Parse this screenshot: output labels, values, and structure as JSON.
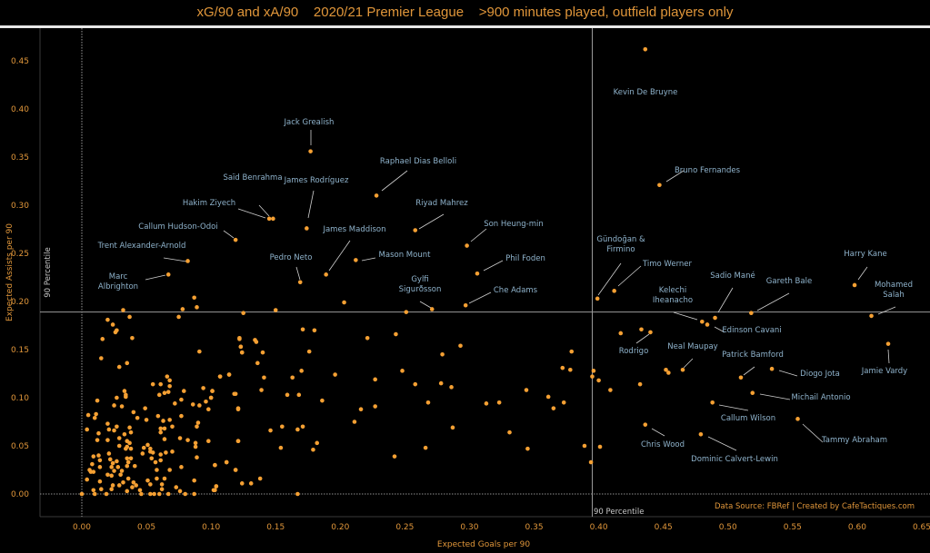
{
  "title": "xG/90 and xA/90    2020/21 Premier League    >900 minutes played, outfield players only",
  "colors": {
    "point": "#f5a033",
    "label": "#8fb3cc",
    "axis_text": "#e0963a",
    "percentile_line": "#9a9a9a"
  },
  "chart_data": {
    "type": "scatter",
    "title": "xG/90 and xA/90    2020/21 Premier League    >900 minutes played, outfield players only",
    "xlabel": "Expected Goals per 90",
    "ylabel": "Expected Assists per 90",
    "xlim": [
      -0.032,
      0.657
    ],
    "ylim": [
      -0.022,
      0.475
    ],
    "xticks": [
      "0.00",
      "0.05",
      "0.10",
      "0.15",
      "0.20",
      "0.25",
      "0.30",
      "0.35",
      "0.40",
      "0.45",
      "0.50",
      "0.55",
      "0.60",
      "0.65"
    ],
    "xtick_values": [
      0,
      0.05,
      0.1,
      0.15,
      0.2,
      0.25,
      0.3,
      0.35,
      0.4,
      0.45,
      0.5,
      0.55,
      0.6,
      0.65
    ],
    "yticks": [
      "0.00",
      "0.05",
      "0.10",
      "0.15",
      "0.20",
      "0.25",
      "0.30",
      "0.35",
      "0.40",
      "0.45"
    ],
    "ytick_values": [
      0,
      0.05,
      0.1,
      0.15,
      0.2,
      0.25,
      0.3,
      0.35,
      0.4,
      0.45
    ],
    "grid": false,
    "reference_lines": {
      "x_percentile": {
        "value": 0.395,
        "label": "90 Percentile"
      },
      "y_percentile": {
        "value": 0.189,
        "label": "90 Percentile"
      }
    },
    "source": "Data Source: FBRef | Created by CafeTactiques.com",
    "labeled_players": [
      {
        "label": [
          "Kevin De Bruyne"
        ],
        "x": 0.436,
        "y": 0.462
      },
      {
        "label": [
          "Bruno Fernandes"
        ],
        "x": 0.447,
        "y": 0.321
      },
      {
        "label": [
          "Jack Grealish"
        ],
        "x": 0.177,
        "y": 0.356
      },
      {
        "label": [
          "Raphael Dias Belloli"
        ],
        "x": 0.228,
        "y": 0.31
      },
      {
        "label": [
          "Saïd Benrahma"
        ],
        "x": 0.148,
        "y": 0.286
      },
      {
        "label": [
          "Hakim Ziyech"
        ],
        "x": 0.145,
        "y": 0.286
      },
      {
        "label": [
          "James Rodríguez"
        ],
        "x": 0.174,
        "y": 0.276
      },
      {
        "label": [
          "Riyad Mahrez"
        ],
        "x": 0.258,
        "y": 0.274
      },
      {
        "label": [
          "Callum Hudson-Odoi"
        ],
        "x": 0.119,
        "y": 0.264
      },
      {
        "label": [
          "Son Heung-min"
        ],
        "x": 0.298,
        "y": 0.258
      },
      {
        "label": [
          "Trent Alexander-Arnold"
        ],
        "x": 0.082,
        "y": 0.242
      },
      {
        "label": [
          "Marc",
          "Albrighton"
        ],
        "x": 0.067,
        "y": 0.228
      },
      {
        "label": [
          "James Maddison"
        ],
        "x": 0.189,
        "y": 0.228
      },
      {
        "label": [
          "Mason Mount"
        ],
        "x": 0.212,
        "y": 0.243
      },
      {
        "label": [
          "Pedro Neto"
        ],
        "x": 0.169,
        "y": 0.22
      },
      {
        "label": [
          "Phil Foden"
        ],
        "x": 0.306,
        "y": 0.229
      },
      {
        "label": [
          "Che Adams"
        ],
        "x": 0.297,
        "y": 0.196
      },
      {
        "label": [
          "Gylfi",
          "Sigurðsson"
        ],
        "x": 0.271,
        "y": 0.192
      },
      {
        "label": [
          "Gündoğan &",
          "Firmino"
        ],
        "x": 0.399,
        "y": 0.203
      },
      {
        "label": [
          "Timo Werner"
        ],
        "x": 0.412,
        "y": 0.211
      },
      {
        "label": [
          "Kelechi",
          "Iheanacho"
        ],
        "x": 0.48,
        "y": 0.179
      },
      {
        "label": [
          "Edinson Cavani"
        ],
        "x": 0.484,
        "y": 0.176
      },
      {
        "label": [
          "Sadio Mané"
        ],
        "x": 0.49,
        "y": 0.183
      },
      {
        "label": [
          "Gareth Bale"
        ],
        "x": 0.518,
        "y": 0.188
      },
      {
        "label": [
          "Harry Kane"
        ],
        "x": 0.598,
        "y": 0.217
      },
      {
        "label": [
          "Mohamed",
          "Salah"
        ],
        "x": 0.611,
        "y": 0.185
      },
      {
        "label": [
          "Jamie Vardy"
        ],
        "x": 0.624,
        "y": 0.156
      },
      {
        "label": [
          "Rodrigo"
        ],
        "x": 0.44,
        "y": 0.168
      },
      {
        "label": [
          "Neal Maupay"
        ],
        "x": 0.465,
        "y": 0.129
      },
      {
        "label": [
          "Patrick Bamford"
        ],
        "x": 0.51,
        "y": 0.121
      },
      {
        "label": [
          "Diogo Jota"
        ],
        "x": 0.534,
        "y": 0.13
      },
      {
        "label": [
          "Michail Antonio"
        ],
        "x": 0.519,
        "y": 0.105
      },
      {
        "label": [
          "Callum Wilson"
        ],
        "x": 0.488,
        "y": 0.095
      },
      {
        "label": [
          "Tammy Abraham"
        ],
        "x": 0.554,
        "y": 0.078
      },
      {
        "label": [
          "Chris Wood"
        ],
        "x": 0.436,
        "y": 0.072
      },
      {
        "label": [
          "Dominic Calvert-Lewin"
        ],
        "x": 0.479,
        "y": 0.062
      }
    ],
    "other_points": [
      [
        0.125,
        0.188
      ],
      [
        0.15,
        0.191
      ],
      [
        0.203,
        0.199
      ],
      [
        0.251,
        0.189
      ],
      [
        0.171,
        0.171
      ],
      [
        0.18,
        0.17
      ],
      [
        0.122,
        0.161
      ],
      [
        0.134,
        0.16
      ],
      [
        0.135,
        0.158
      ],
      [
        0.123,
        0.153
      ],
      [
        0.124,
        0.147
      ],
      [
        0.14,
        0.147
      ],
      [
        0.176,
        0.148
      ],
      [
        0.221,
        0.162
      ],
      [
        0.243,
        0.166
      ],
      [
        0.293,
        0.154
      ],
      [
        0.279,
        0.145
      ],
      [
        0.379,
        0.148
      ],
      [
        0.136,
        0.136
      ],
      [
        0.107,
        0.122
      ],
      [
        0.114,
        0.124
      ],
      [
        0.141,
        0.121
      ],
      [
        0.163,
        0.121
      ],
      [
        0.17,
        0.128
      ],
      [
        0.196,
        0.124
      ],
      [
        0.227,
        0.119
      ],
      [
        0.248,
        0.128
      ],
      [
        0.258,
        0.114
      ],
      [
        0.278,
        0.115
      ],
      [
        0.286,
        0.111
      ],
      [
        0.372,
        0.131
      ],
      [
        0.378,
        0.129
      ],
      [
        0.101,
        0.107
      ],
      [
        0.1,
        0.1
      ],
      [
        0.118,
        0.104
      ],
      [
        0.139,
        0.108
      ],
      [
        0.159,
        0.103
      ],
      [
        0.168,
        0.103
      ],
      [
        0.186,
        0.097
      ],
      [
        0.121,
        0.088
      ],
      [
        0.216,
        0.088
      ],
      [
        0.227,
        0.091
      ],
      [
        0.268,
        0.095
      ],
      [
        0.313,
        0.094
      ],
      [
        0.323,
        0.095
      ],
      [
        0.344,
        0.108
      ],
      [
        0.361,
        0.101
      ],
      [
        0.365,
        0.089
      ],
      [
        0.373,
        0.095
      ],
      [
        0.211,
        0.075
      ],
      [
        0.146,
        0.066
      ],
      [
        0.155,
        0.07
      ],
      [
        0.167,
        0.067
      ],
      [
        0.171,
        0.07
      ],
      [
        0.287,
        0.069
      ],
      [
        0.121,
        0.055
      ],
      [
        0.154,
        0.048
      ],
      [
        0.179,
        0.046
      ],
      [
        0.182,
        0.053
      ],
      [
        0.266,
        0.048
      ],
      [
        0.331,
        0.064
      ],
      [
        0.345,
        0.047
      ],
      [
        0.389,
        0.05
      ],
      [
        0.242,
        0.039
      ],
      [
        0.103,
        0.03
      ],
      [
        0.112,
        0.033
      ],
      [
        0.119,
        0.025
      ],
      [
        0.138,
        0.016
      ],
      [
        0.131,
        0.011
      ],
      [
        0.104,
        0.008
      ],
      [
        0.103,
        0.004
      ],
      [
        0.167,
        0.0
      ],
      [
        0.417,
        0.167
      ],
      [
        0.433,
        0.171
      ],
      [
        0.396,
        0.128
      ],
      [
        0.395,
        0.122
      ],
      [
        0.4,
        0.118
      ],
      [
        0.409,
        0.108
      ],
      [
        0.432,
        0.114
      ],
      [
        0.452,
        0.129
      ],
      [
        0.454,
        0.126
      ],
      [
        0.401,
        0.049
      ],
      [
        0.394,
        0.033
      ],
      [
        0.087,
        0.204
      ],
      [
        0.089,
        0.194
      ],
      [
        0.032,
        0.191
      ],
      [
        0.078,
        0.192
      ],
      [
        0.075,
        0.184
      ],
      [
        0.037,
        0.184
      ],
      [
        0.02,
        0.181
      ],
      [
        0.024,
        0.176
      ],
      [
        0.027,
        0.17
      ],
      [
        0.026,
        0.168
      ],
      [
        0.016,
        0.161
      ],
      [
        0.039,
        0.162
      ],
      [
        0.122,
        0.162
      ],
      [
        0.123,
        0.153
      ],
      [
        0.124,
        0.147
      ],
      [
        0.091,
        0.148
      ],
      [
        0.015,
        0.141
      ],
      [
        0.035,
        0.136
      ],
      [
        0.029,
        0.132
      ],
      [
        0.107,
        0.122
      ],
      [
        0.114,
        0.124
      ],
      [
        0.055,
        0.114
      ],
      [
        0.061,
        0.114
      ],
      [
        0.066,
        0.122
      ],
      [
        0.068,
        0.118
      ],
      [
        0.068,
        0.112
      ],
      [
        0.067,
        0.106
      ],
      [
        0.064,
        0.105
      ],
      [
        0.06,
        0.103
      ],
      [
        0.079,
        0.107
      ],
      [
        0.094,
        0.11
      ],
      [
        0.101,
        0.107
      ],
      [
        0.1,
        0.1
      ],
      [
        0.096,
        0.096
      ],
      [
        0.119,
        0.104
      ],
      [
        0.033,
        0.107
      ],
      [
        0.034,
        0.103
      ],
      [
        0.034,
        0.101
      ],
      [
        0.027,
        0.1
      ],
      [
        0.012,
        0.097
      ],
      [
        0.025,
        0.092
      ],
      [
        0.031,
        0.091
      ],
      [
        0.049,
        0.089
      ],
      [
        0.072,
        0.094
      ],
      [
        0.077,
        0.098
      ],
      [
        0.086,
        0.093
      ],
      [
        0.091,
        0.092
      ],
      [
        0.098,
        0.088
      ],
      [
        0.121,
        0.089
      ],
      [
        0.005,
        0.082
      ],
      [
        0.011,
        0.083
      ],
      [
        0.01,
        0.079
      ],
      [
        0.04,
        0.085
      ],
      [
        0.043,
        0.079
      ],
      [
        0.05,
        0.077
      ],
      [
        0.059,
        0.081
      ],
      [
        0.063,
        0.076
      ],
      [
        0.068,
        0.077
      ],
      [
        0.077,
        0.081
      ],
      [
        0.089,
        0.07
      ],
      [
        0.09,
        0.074
      ],
      [
        0.07,
        0.07
      ],
      [
        0.064,
        0.068
      ],
      [
        0.061,
        0.068
      ],
      [
        0.061,
        0.064
      ],
      [
        0.004,
        0.067
      ],
      [
        0.013,
        0.063
      ],
      [
        0.02,
        0.073
      ],
      [
        0.027,
        0.07
      ],
      [
        0.021,
        0.067
      ],
      [
        0.025,
        0.066
      ],
      [
        0.037,
        0.069
      ],
      [
        0.038,
        0.064
      ],
      [
        0.033,
        0.062
      ],
      [
        0.012,
        0.056
      ],
      [
        0.02,
        0.056
      ],
      [
        0.029,
        0.058
      ],
      [
        0.029,
        0.05
      ],
      [
        0.035,
        0.055
      ],
      [
        0.037,
        0.053
      ],
      [
        0.035,
        0.049
      ],
      [
        0.034,
        0.047
      ],
      [
        0.038,
        0.047
      ],
      [
        0.064,
        0.057
      ],
      [
        0.076,
        0.058
      ],
      [
        0.082,
        0.056
      ],
      [
        0.098,
        0.055
      ],
      [
        0.121,
        0.055
      ],
      [
        0.088,
        0.053
      ],
      [
        0.088,
        0.049
      ],
      [
        0.048,
        0.048
      ],
      [
        0.051,
        0.051
      ],
      [
        0.053,
        0.047
      ],
      [
        0.055,
        0.043
      ],
      [
        0.053,
        0.044
      ],
      [
        0.047,
        0.042
      ],
      [
        0.061,
        0.041
      ],
      [
        0.065,
        0.043
      ],
      [
        0.07,
        0.044
      ],
      [
        0.089,
        0.038
      ],
      [
        0.009,
        0.039
      ],
      [
        0.013,
        0.04
      ],
      [
        0.021,
        0.042
      ],
      [
        0.014,
        0.035
      ],
      [
        0.022,
        0.036
      ],
      [
        0.027,
        0.034
      ],
      [
        0.035,
        0.037
      ],
      [
        0.038,
        0.037
      ],
      [
        0.036,
        0.033
      ],
      [
        0.024,
        0.032
      ],
      [
        0.008,
        0.031
      ],
      [
        0.014,
        0.028
      ],
      [
        0.023,
        0.028
      ],
      [
        0.028,
        0.028
      ],
      [
        0.035,
        0.029
      ],
      [
        0.041,
        0.029
      ],
      [
        0.054,
        0.037
      ],
      [
        0.057,
        0.033
      ],
      [
        0.061,
        0.035
      ],
      [
        0.006,
        0.025
      ],
      [
        0.007,
        0.023
      ],
      [
        0.009,
        0.023
      ],
      [
        0.025,
        0.024
      ],
      [
        0.031,
        0.024
      ],
      [
        0.058,
        0.025
      ],
      [
        0.068,
        0.025
      ],
      [
        0.077,
        0.028
      ],
      [
        0.103,
        0.03
      ],
      [
        0.112,
        0.033
      ],
      [
        0.119,
        0.025
      ],
      [
        0.004,
        0.015
      ],
      [
        0.014,
        0.013
      ],
      [
        0.02,
        0.02
      ],
      [
        0.023,
        0.019
      ],
      [
        0.03,
        0.02
      ],
      [
        0.032,
        0.012
      ],
      [
        0.036,
        0.016
      ],
      [
        0.04,
        0.012
      ],
      [
        0.042,
        0.009
      ],
      [
        0.039,
        0.007
      ],
      [
        0.024,
        0.009
      ],
      [
        0.023,
        0.005
      ],
      [
        0.029,
        0.009
      ],
      [
        0.051,
        0.014
      ],
      [
        0.053,
        0.01
      ],
      [
        0.058,
        0.016
      ],
      [
        0.062,
        0.01
      ],
      [
        0.062,
        0.005
      ],
      [
        0.064,
        0.016
      ],
      [
        0.045,
        0.004
      ],
      [
        0.035,
        0.003
      ],
      [
        0.073,
        0.007
      ],
      [
        0.076,
        0.003
      ],
      [
        0.087,
        0.014
      ],
      [
        0.102,
        0.004
      ],
      [
        0.104,
        0.008
      ],
      [
        0.124,
        0.011
      ],
      [
        0.009,
        0.004
      ],
      [
        0.015,
        0.005
      ],
      [
        0.0,
        0.0
      ],
      [
        0.01,
        0.0
      ],
      [
        0.019,
        0.0
      ],
      [
        0.046,
        0.0
      ],
      [
        0.053,
        0.0
      ],
      [
        0.056,
        0.0
      ],
      [
        0.06,
        0.0
      ],
      [
        0.067,
        0.0
      ],
      [
        0.08,
        0.0
      ],
      [
        0.087,
        0.0
      ]
    ]
  }
}
